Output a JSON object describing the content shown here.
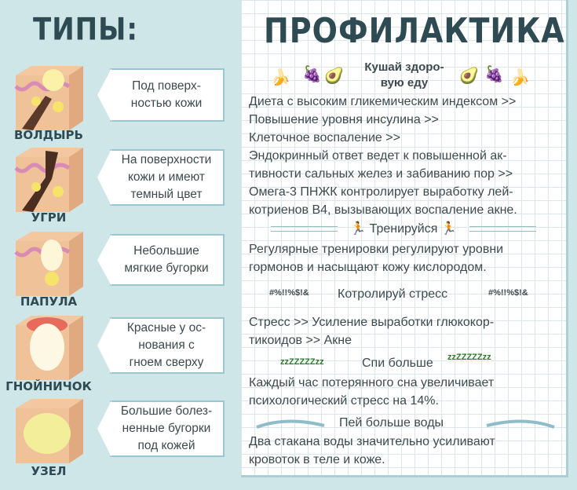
{
  "left": {
    "title": "ТИПЫ:",
    "types": [
      {
        "name": "ВОЛДЫРЬ",
        "description": "Под поверх-\nностью кожи"
      },
      {
        "name": "УГРИ",
        "description": "На поверхности\nкожи и имеют\nтемный цвет"
      },
      {
        "name": "ПАПУЛА",
        "description": "Небольшие\nмягкие бугорки"
      },
      {
        "name": "ГНОЙНИЧОК",
        "description": "Красные у ос-\nнования с\nгноем сверху"
      },
      {
        "name": "УЗЕЛ",
        "description": "Большие болез-\nненные бугорки\nпод кожей"
      }
    ]
  },
  "right": {
    "title": "ПРОФИЛАКТИКА",
    "food": {
      "heading": "Кушай здоро-\nвую еду",
      "icons": [
        "banana-icon",
        "grapes-icon",
        "avocado-icon"
      ],
      "lines": [
        "Диета с высоким гликемическим индексом >>",
        "Повышение уровня инсулина >>",
        "Клеточное воспаление >>",
        "Эндокринный ответ ведет к повышенной ак-",
        "тивности сальных желез и забиванию пор >>",
        "Омега-3 ПНЖК контролирует выработку лей-",
        "котриенов В4, вызывающих воспаление акне."
      ]
    },
    "exercise": {
      "heading": "Тренируйся",
      "lines": [
        "Регулярные тренировки регулируют уровни",
        "гормонов и насыщают кожу кислородом."
      ]
    },
    "stress": {
      "heading": "Котролируй стресс",
      "deco": "#%!!%$!&",
      "lines": [
        "Стресс >> Усиление выработки глюкокор-",
        "тикоидов >> Акне"
      ]
    },
    "sleep": {
      "heading": "Спи больше",
      "deco": "zzZZZZZzz",
      "lines": [
        "Каждый час потерянного сна увеличивает",
        "психологический стресс на 14%."
      ]
    },
    "water": {
      "heading": "Пей больше воды",
      "lines": [
        "Два стакана воды значительно усиливают",
        "кровоток в теле и коже."
      ]
    }
  }
}
